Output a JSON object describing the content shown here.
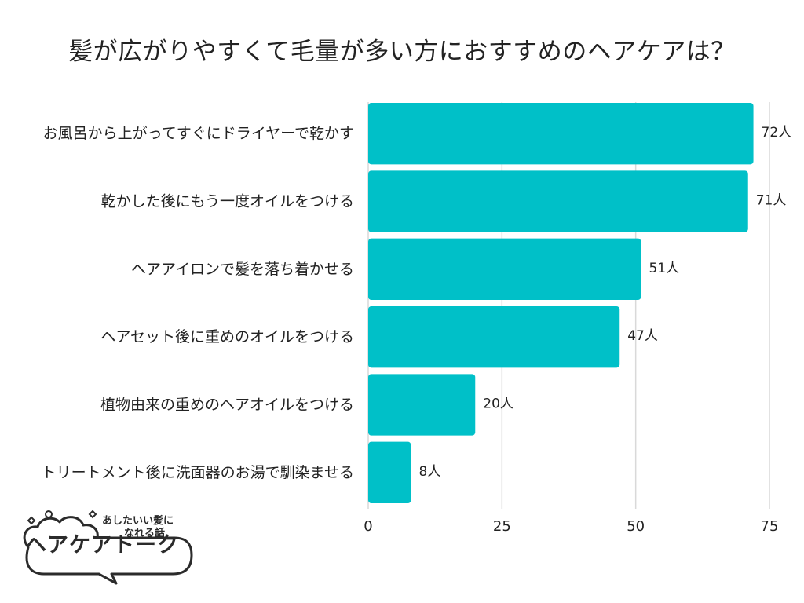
{
  "chart_data": {
    "type": "bar",
    "orientation": "horizontal",
    "title": "髪が広がりやすくて毛量が多い方におすすめのヘアケアは？",
    "categories": [
      "お風呂から上がってすぐにドライヤーで乾かす",
      "乾かした後にもう一度オイルをつける",
      "ヘアアイロンで髪を落ち着かせる",
      "ヘアセット後に重めのオイルをつける",
      "植物由来の重めのヘアオイルをつける",
      "トリートメント後に洗面器のお湯で馴染ませる"
    ],
    "values": [
      72,
      71,
      51,
      47,
      20,
      8
    ],
    "value_labels": [
      "72人",
      "71人",
      "51人",
      "47人",
      "20人",
      "8人"
    ],
    "unit": "人",
    "xlim": [
      0,
      75
    ],
    "xticks": [
      0,
      25,
      50,
      75
    ],
    "xlabel": "",
    "ylabel": "",
    "grid": true,
    "bar_color": "#00c0c8"
  },
  "logo": {
    "main_text": "ヘアケアトーク",
    "sub_line1": "あしたいい髪に",
    "sub_line2": "なれる話"
  }
}
